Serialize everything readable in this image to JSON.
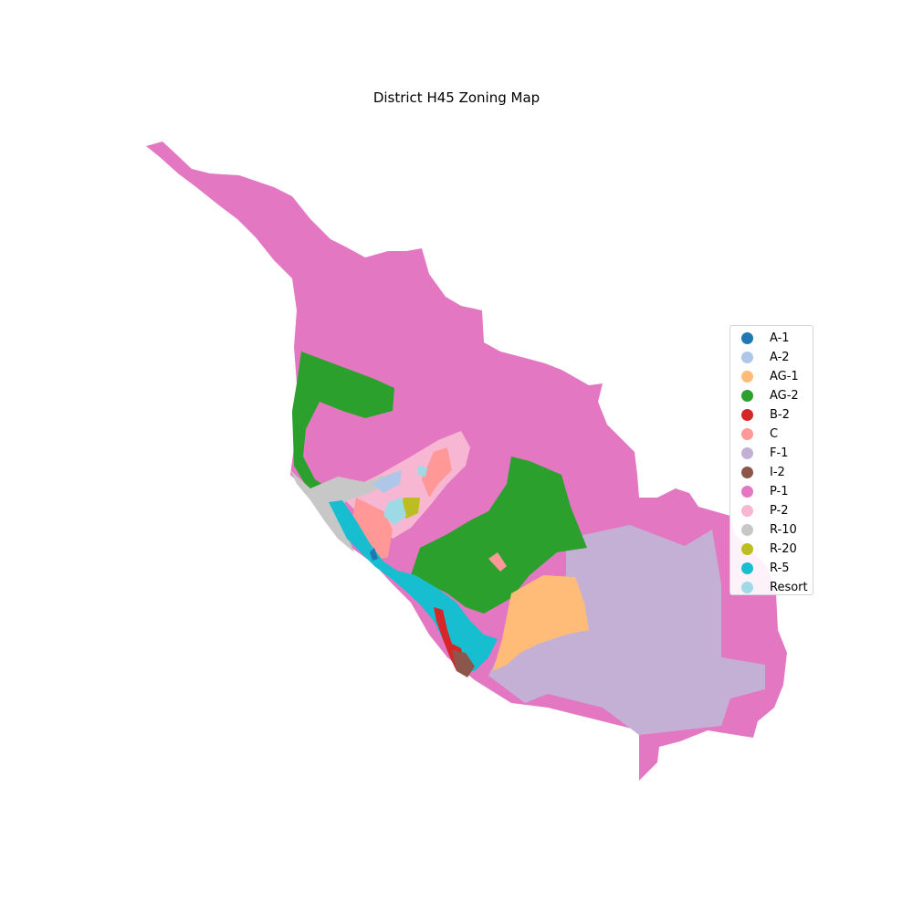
{
  "title": "District H45 Zoning Map",
  "legend": [
    {
      "label": "A-1",
      "color": "#1f77b4"
    },
    {
      "label": "A-2",
      "color": "#aec7e8"
    },
    {
      "label": "AG-1",
      "color": "#ffbb78"
    },
    {
      "label": "AG-2",
      "color": "#2ca02c"
    },
    {
      "label": "B-2",
      "color": "#d62728"
    },
    {
      "label": "C",
      "color": "#ff9896"
    },
    {
      "label": "F-1",
      "color": "#c5b0d5"
    },
    {
      "label": "I-2",
      "color": "#8c564b"
    },
    {
      "label": "P-1",
      "color": "#e377c2"
    },
    {
      "label": "P-2",
      "color": "#f7b6d2"
    },
    {
      "label": "R-10",
      "color": "#c7c7c7"
    },
    {
      "label": "R-20",
      "color": "#bcbd22"
    },
    {
      "label": "R-5",
      "color": "#17becf"
    },
    {
      "label": "Resort",
      "color": "#9edae5"
    }
  ]
}
